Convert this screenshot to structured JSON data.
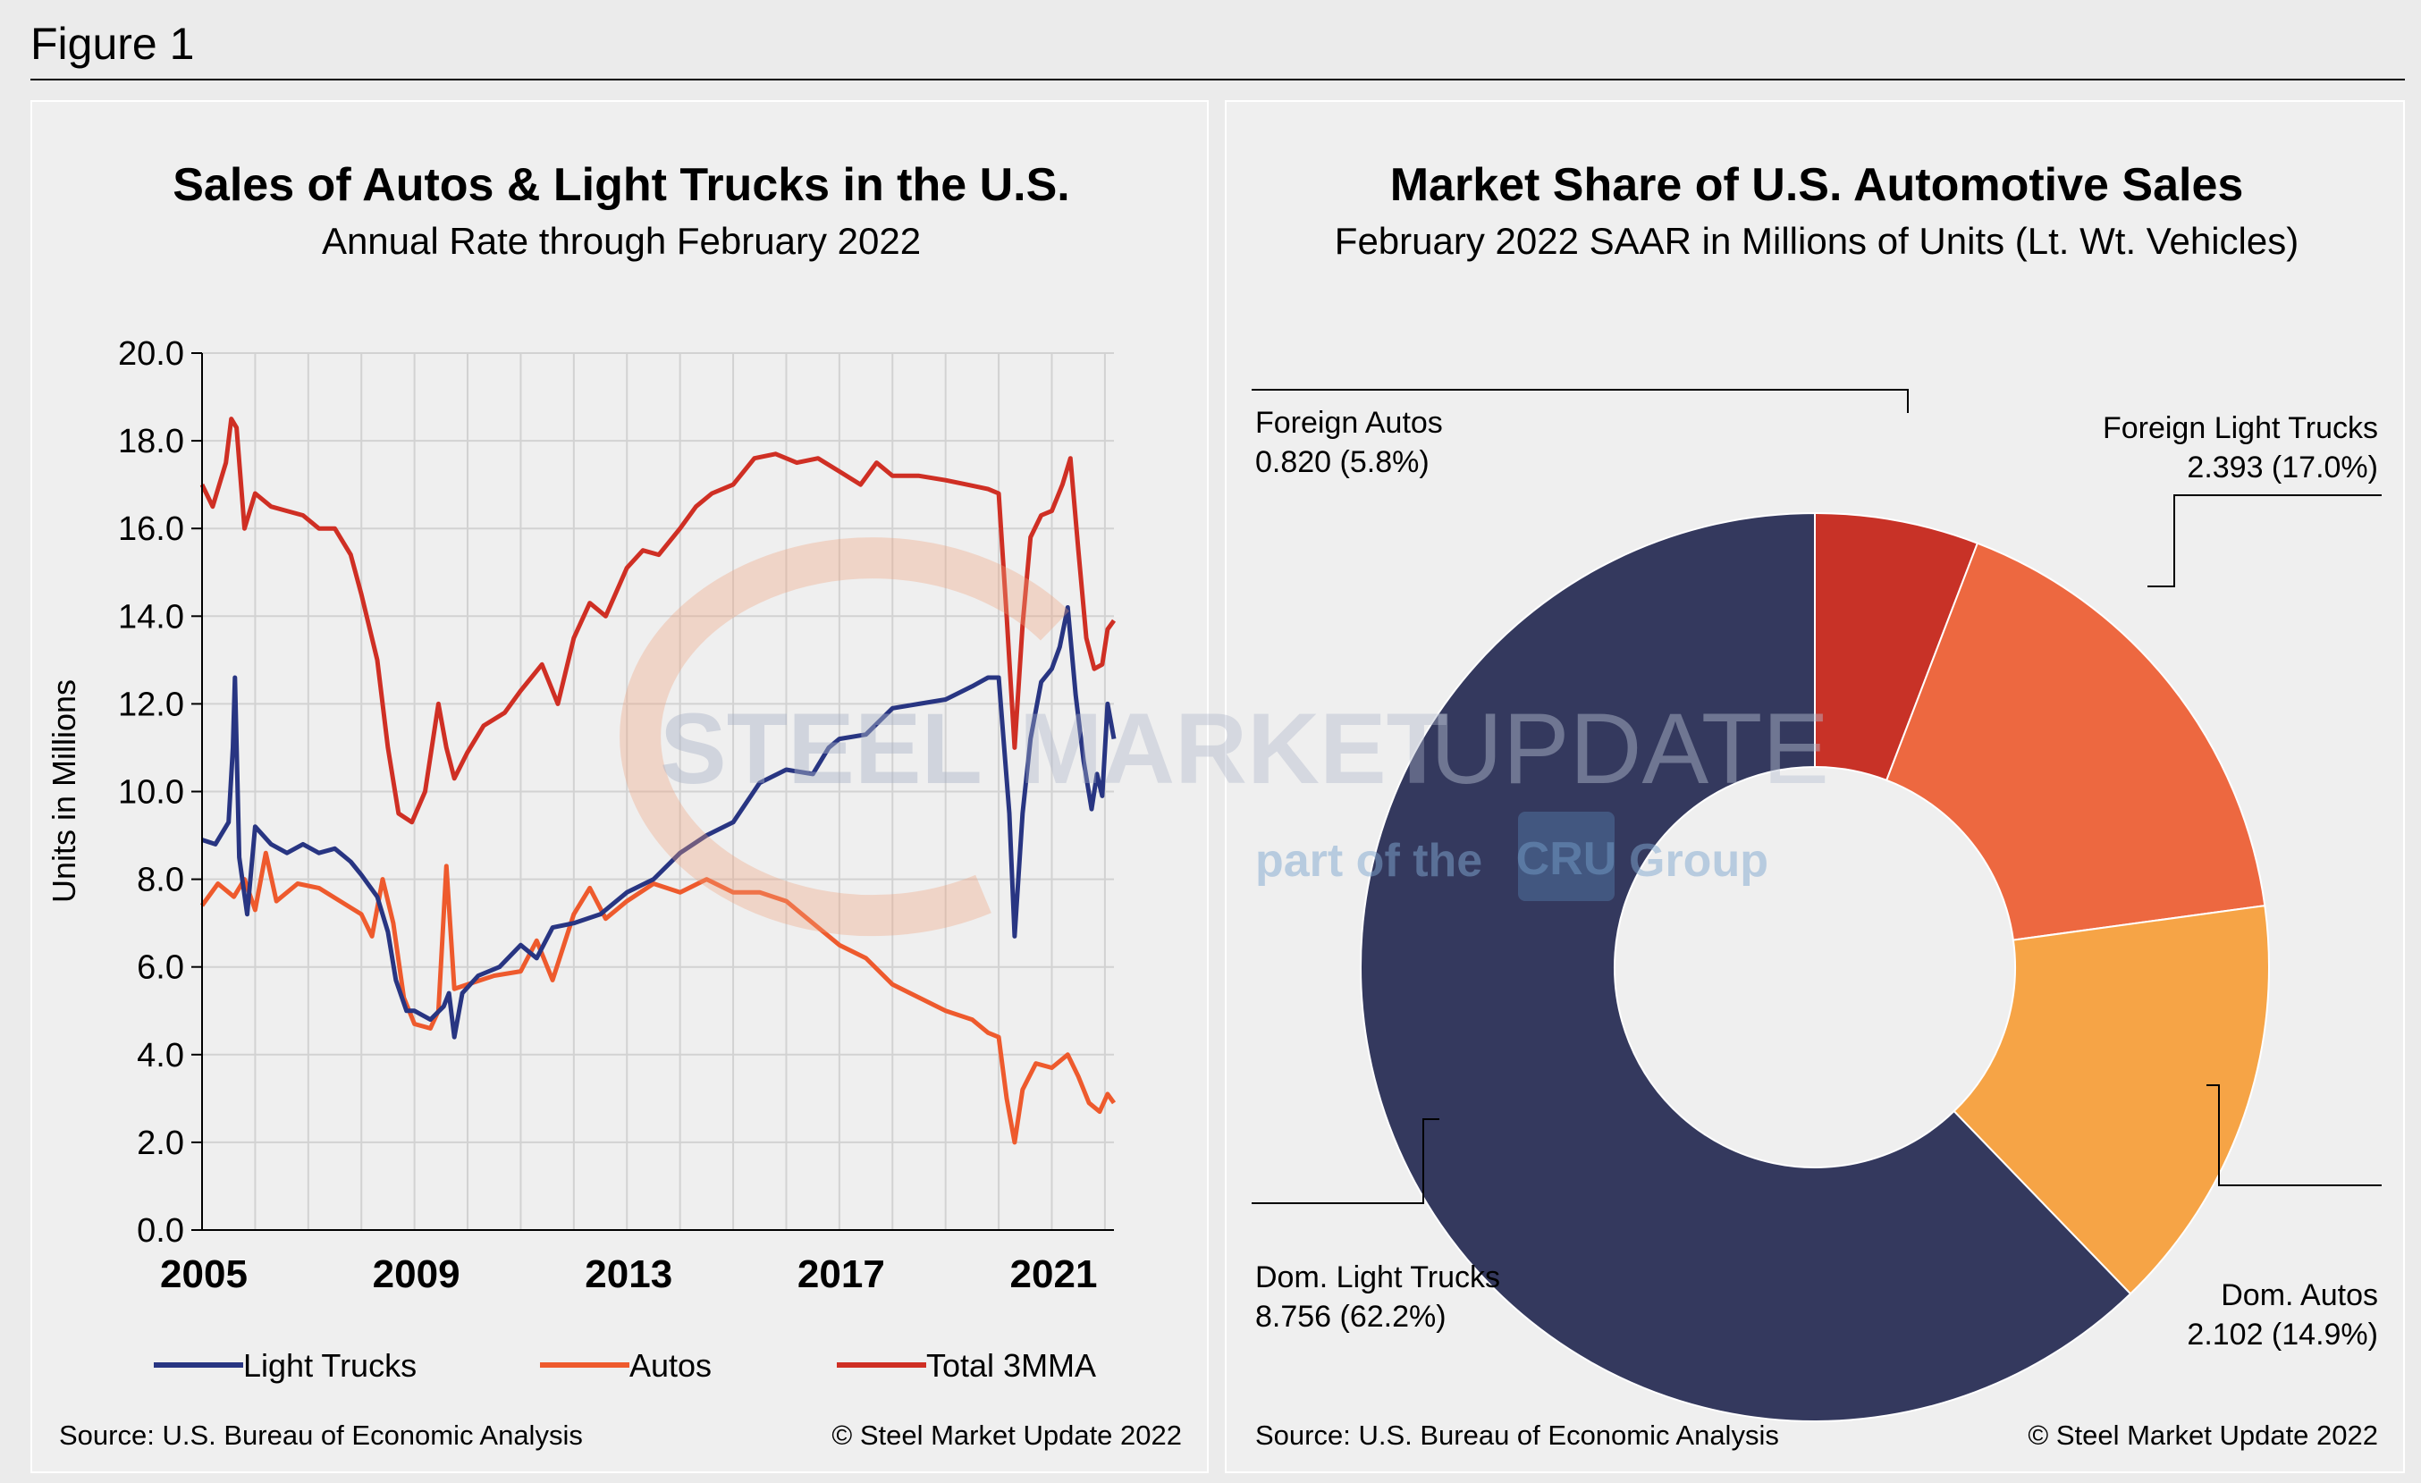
{
  "figure_title": "Figure 1",
  "chart_data": [
    {
      "type": "line",
      "title": "Sales of Autos & Light Trucks in the U.S.",
      "subtitle": "Annual Rate through February 2022",
      "xlabel": "",
      "ylabel": "Units in Millions",
      "ylim": [
        0,
        20
      ],
      "xlim": [
        2005,
        2022.17
      ],
      "yticks": [
        "0.0",
        "2.0",
        "4.0",
        "6.0",
        "8.0",
        "10.0",
        "12.0",
        "14.0",
        "16.0",
        "18.0",
        "20.0"
      ],
      "xticks": [
        "2005",
        "2009",
        "2013",
        "2017",
        "2021"
      ],
      "grid": true,
      "legend_position": "bottom",
      "source": "Source: U.S. Bureau of Economic Analysis",
      "copyright": "© Steel Market Update 2022",
      "series": [
        {
          "name": "Light Trucks",
          "color": "#283582",
          "points": [
            [
              2005.0,
              8.9
            ],
            [
              2005.25,
              8.8
            ],
            [
              2005.5,
              9.3
            ],
            [
              2005.58,
              11.0
            ],
            [
              2005.62,
              12.6
            ],
            [
              2005.7,
              8.5
            ],
            [
              2005.85,
              7.2
            ],
            [
              2006.0,
              9.2
            ],
            [
              2006.3,
              8.8
            ],
            [
              2006.6,
              8.6
            ],
            [
              2006.9,
              8.8
            ],
            [
              2007.2,
              8.6
            ],
            [
              2007.5,
              8.7
            ],
            [
              2007.8,
              8.4
            ],
            [
              2008.0,
              8.1
            ],
            [
              2008.3,
              7.6
            ],
            [
              2008.5,
              6.8
            ],
            [
              2008.65,
              5.7
            ],
            [
              2008.85,
              5.0
            ],
            [
              2009.0,
              5.0
            ],
            [
              2009.3,
              4.8
            ],
            [
              2009.55,
              5.1
            ],
            [
              2009.65,
              5.4
            ],
            [
              2009.75,
              4.4
            ],
            [
              2009.9,
              5.4
            ],
            [
              2010.2,
              5.8
            ],
            [
              2010.6,
              6.0
            ],
            [
              2011.0,
              6.5
            ],
            [
              2011.3,
              6.2
            ],
            [
              2011.6,
              6.9
            ],
            [
              2012.0,
              7.0
            ],
            [
              2012.5,
              7.2
            ],
            [
              2013.0,
              7.7
            ],
            [
              2013.5,
              8.0
            ],
            [
              2014.0,
              8.6
            ],
            [
              2014.5,
              9.0
            ],
            [
              2015.0,
              9.3
            ],
            [
              2015.5,
              10.2
            ],
            [
              2016.0,
              10.5
            ],
            [
              2016.5,
              10.4
            ],
            [
              2016.8,
              11.0
            ],
            [
              2017.0,
              11.2
            ],
            [
              2017.5,
              11.3
            ],
            [
              2018.0,
              11.9
            ],
            [
              2018.5,
              12.0
            ],
            [
              2019.0,
              12.1
            ],
            [
              2019.5,
              12.4
            ],
            [
              2019.8,
              12.6
            ],
            [
              2020.0,
              12.6
            ],
            [
              2020.2,
              9.5
            ],
            [
              2020.3,
              6.7
            ],
            [
              2020.45,
              9.5
            ],
            [
              2020.6,
              11.2
            ],
            [
              2020.8,
              12.5
            ],
            [
              2021.0,
              12.8
            ],
            [
              2021.15,
              13.3
            ],
            [
              2021.3,
              14.2
            ],
            [
              2021.45,
              12.2
            ],
            [
              2021.6,
              10.7
            ],
            [
              2021.75,
              9.6
            ],
            [
              2021.85,
              10.4
            ],
            [
              2021.95,
              9.9
            ],
            [
              2022.05,
              12.0
            ],
            [
              2022.17,
              11.2
            ]
          ]
        },
        {
          "name": "Autos",
          "color": "#ee5a2d",
          "points": [
            [
              2005.0,
              7.4
            ],
            [
              2005.3,
              7.9
            ],
            [
              2005.6,
              7.6
            ],
            [
              2005.8,
              8.0
            ],
            [
              2006.0,
              7.3
            ],
            [
              2006.2,
              8.6
            ],
            [
              2006.4,
              7.5
            ],
            [
              2006.8,
              7.9
            ],
            [
              2007.2,
              7.8
            ],
            [
              2007.6,
              7.5
            ],
            [
              2008.0,
              7.2
            ],
            [
              2008.2,
              6.7
            ],
            [
              2008.4,
              8.0
            ],
            [
              2008.6,
              7.0
            ],
            [
              2008.8,
              5.3
            ],
            [
              2009.0,
              4.7
            ],
            [
              2009.3,
              4.6
            ],
            [
              2009.45,
              5.0
            ],
            [
              2009.6,
              8.3
            ],
            [
              2009.75,
              5.5
            ],
            [
              2010.0,
              5.6
            ],
            [
              2010.5,
              5.8
            ],
            [
              2011.0,
              5.9
            ],
            [
              2011.3,
              6.6
            ],
            [
              2011.6,
              5.7
            ],
            [
              2012.0,
              7.2
            ],
            [
              2012.3,
              7.8
            ],
            [
              2012.6,
              7.1
            ],
            [
              2013.0,
              7.5
            ],
            [
              2013.5,
              7.9
            ],
            [
              2014.0,
              7.7
            ],
            [
              2014.5,
              8.0
            ],
            [
              2015.0,
              7.7
            ],
            [
              2015.5,
              7.7
            ],
            [
              2016.0,
              7.5
            ],
            [
              2016.5,
              7.0
            ],
            [
              2017.0,
              6.5
            ],
            [
              2017.5,
              6.2
            ],
            [
              2018.0,
              5.6
            ],
            [
              2018.5,
              5.3
            ],
            [
              2019.0,
              5.0
            ],
            [
              2019.5,
              4.8
            ],
            [
              2019.8,
              4.5
            ],
            [
              2020.0,
              4.4
            ],
            [
              2020.15,
              3.0
            ],
            [
              2020.3,
              2.0
            ],
            [
              2020.45,
              3.2
            ],
            [
              2020.7,
              3.8
            ],
            [
              2021.0,
              3.7
            ],
            [
              2021.3,
              4.0
            ],
            [
              2021.5,
              3.5
            ],
            [
              2021.7,
              2.9
            ],
            [
              2021.9,
              2.7
            ],
            [
              2022.05,
              3.1
            ],
            [
              2022.17,
              2.9
            ]
          ]
        },
        {
          "name": "Total 3MMA",
          "color": "#cf2f24",
          "points": [
            [
              2005.0,
              17.0
            ],
            [
              2005.2,
              16.5
            ],
            [
              2005.45,
              17.5
            ],
            [
              2005.55,
              18.5
            ],
            [
              2005.65,
              18.3
            ],
            [
              2005.8,
              16.0
            ],
            [
              2006.0,
              16.8
            ],
            [
              2006.3,
              16.5
            ],
            [
              2006.6,
              16.4
            ],
            [
              2006.9,
              16.3
            ],
            [
              2007.2,
              16.0
            ],
            [
              2007.5,
              16.0
            ],
            [
              2007.8,
              15.4
            ],
            [
              2008.0,
              14.5
            ],
            [
              2008.3,
              13.0
            ],
            [
              2008.5,
              11.0
            ],
            [
              2008.7,
              9.5
            ],
            [
              2008.95,
              9.3
            ],
            [
              2009.2,
              10.0
            ],
            [
              2009.45,
              12.0
            ],
            [
              2009.6,
              11.0
            ],
            [
              2009.75,
              10.3
            ],
            [
              2010.0,
              10.9
            ],
            [
              2010.3,
              11.5
            ],
            [
              2010.7,
              11.8
            ],
            [
              2011.0,
              12.3
            ],
            [
              2011.4,
              12.9
            ],
            [
              2011.7,
              12.0
            ],
            [
              2012.0,
              13.5
            ],
            [
              2012.3,
              14.3
            ],
            [
              2012.6,
              14.0
            ],
            [
              2013.0,
              15.1
            ],
            [
              2013.3,
              15.5
            ],
            [
              2013.6,
              15.4
            ],
            [
              2014.0,
              16.0
            ],
            [
              2014.3,
              16.5
            ],
            [
              2014.6,
              16.8
            ],
            [
              2015.0,
              17.0
            ],
            [
              2015.4,
              17.6
            ],
            [
              2015.8,
              17.7
            ],
            [
              2016.2,
              17.5
            ],
            [
              2016.6,
              17.6
            ],
            [
              2017.0,
              17.3
            ],
            [
              2017.4,
              17.0
            ],
            [
              2017.7,
              17.5
            ],
            [
              2018.0,
              17.2
            ],
            [
              2018.5,
              17.2
            ],
            [
              2019.0,
              17.1
            ],
            [
              2019.4,
              17.0
            ],
            [
              2019.8,
              16.9
            ],
            [
              2020.0,
              16.8
            ],
            [
              2020.15,
              14.0
            ],
            [
              2020.3,
              11.0
            ],
            [
              2020.45,
              13.8
            ],
            [
              2020.6,
              15.8
            ],
            [
              2020.8,
              16.3
            ],
            [
              2021.0,
              16.4
            ],
            [
              2021.2,
              17.0
            ],
            [
              2021.35,
              17.6
            ],
            [
              2021.5,
              15.5
            ],
            [
              2021.65,
              13.5
            ],
            [
              2021.8,
              12.8
            ],
            [
              2021.95,
              12.9
            ],
            [
              2022.05,
              13.7
            ],
            [
              2022.17,
              13.9
            ]
          ]
        }
      ]
    },
    {
      "type": "pie",
      "title": "Market Share of U.S. Automotive Sales",
      "subtitle": "February 2022 SAAR in Millions of Units (Lt. Wt. Vehicles)",
      "source": "Source: U.S. Bureau of Economic Analysis",
      "copyright": "© Steel Market Update 2022",
      "slices": [
        {
          "name": "Foreign Autos",
          "value": 0.82,
          "value_label": "0.820 (5.8%)",
          "color": "#c83227"
        },
        {
          "name": "Foreign Light Trucks",
          "value": 2.393,
          "value_label": "2.393 (17.0%)",
          "color": "#ed6840"
        },
        {
          "name": "Dom. Autos",
          "value": 2.102,
          "value_label": "2.102 (14.9%)",
          "color": "#f6a446"
        },
        {
          "name": "Dom. Light Trucks",
          "value": 8.756,
          "value_label": "8.756 (62.2%)",
          "color": "#34395e"
        }
      ]
    }
  ],
  "watermark": {
    "brand_a": "STEEL",
    "brand_b": "MARKET",
    "brand_c": "UPDATE",
    "tagline_a": "part of the",
    "tagline_b": "CRU",
    "tagline_c": "Group"
  }
}
